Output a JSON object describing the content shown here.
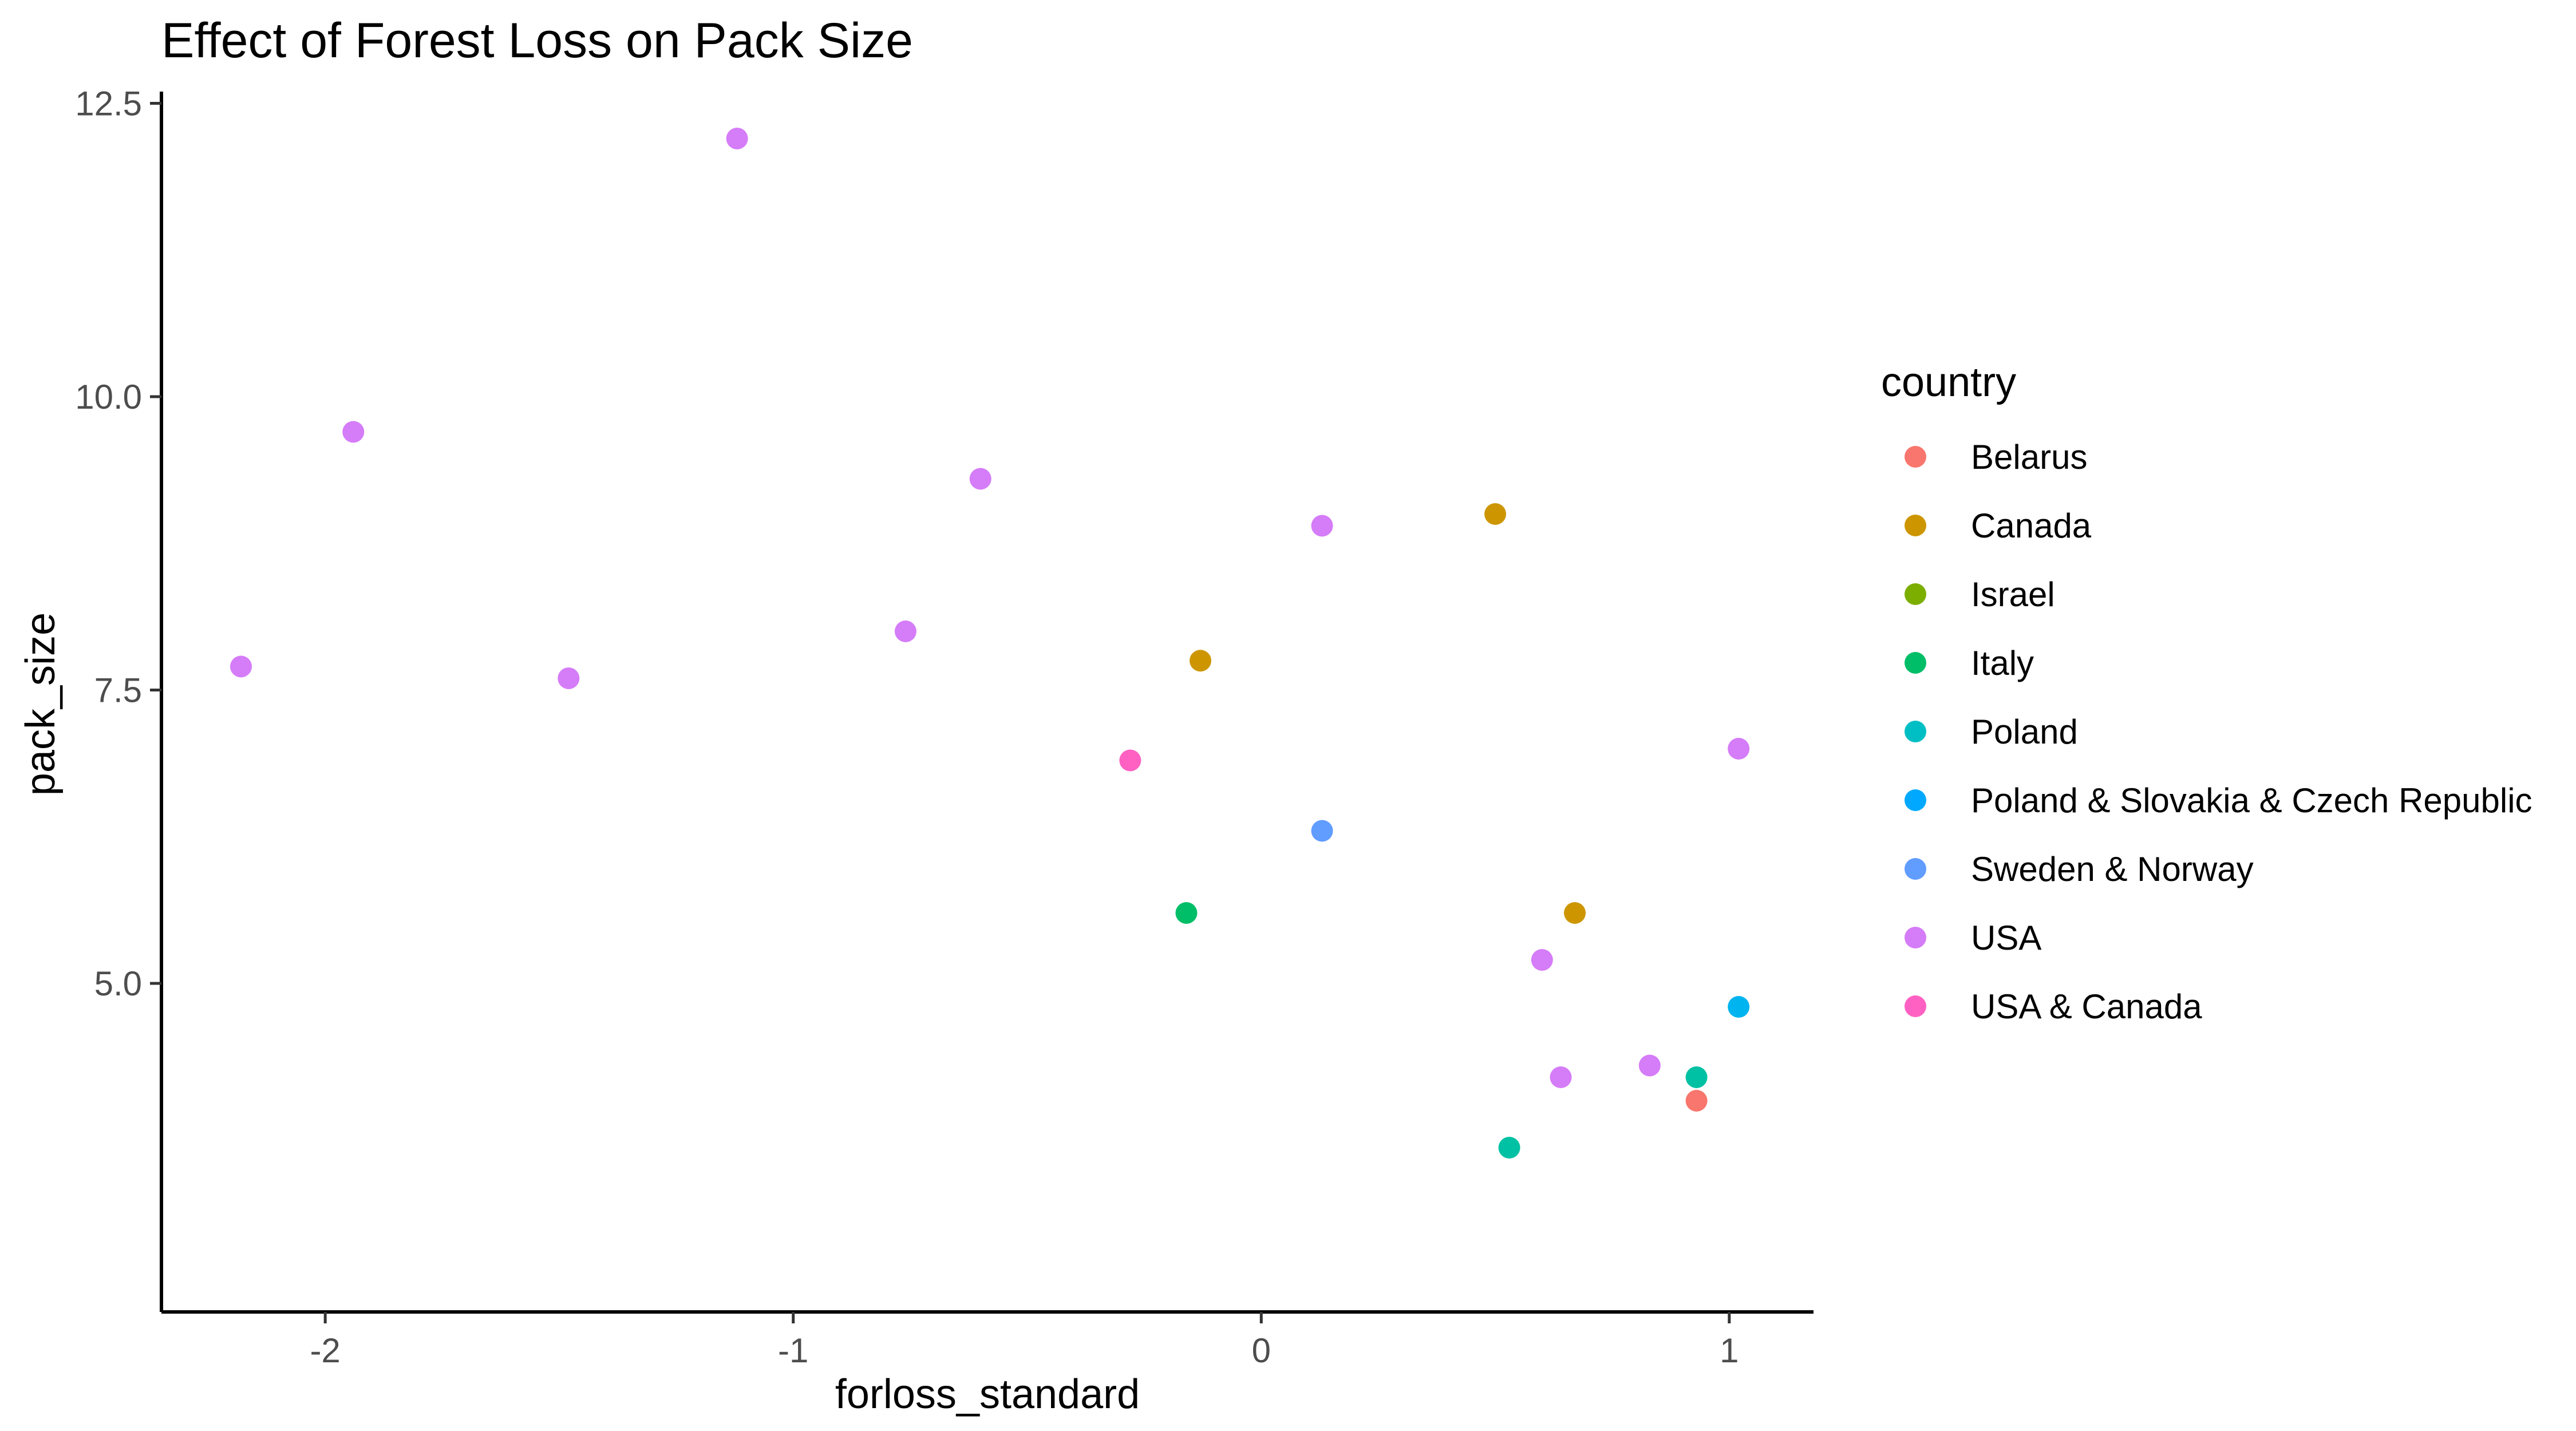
{
  "chart_data": {
    "type": "scatter",
    "title": "Effect of Forest Loss on Pack Size",
    "xlabel": "forloss_standard",
    "ylabel": "pack_size",
    "xlim": [
      -2.35,
      1.18
    ],
    "ylim": [
      2.2,
      12.6
    ],
    "xticks": [
      -2,
      -1,
      0,
      1
    ],
    "xtick_labels": [
      "-2",
      "-1",
      "0",
      "1"
    ],
    "yticks": [
      5.0,
      7.5,
      10.0,
      12.5
    ],
    "ytick_labels": [
      "5.0",
      "7.5",
      "10.0",
      "12.5"
    ],
    "grid": false,
    "legend": {
      "title": "country",
      "position": "right",
      "entries": [
        {
          "name": "Belarus",
          "color": "#F8766D"
        },
        {
          "name": "Canada",
          "color": "#CD9600"
        },
        {
          "name": "Israel",
          "color": "#7CAE00"
        },
        {
          "name": "Italy",
          "color": "#00BE67"
        },
        {
          "name": "Poland",
          "color": "#00BFC4"
        },
        {
          "name": "Poland & Slovakia & Czech Republic",
          "color": "#00A9FF"
        },
        {
          "name": "Sweden & Norway",
          "color": "#619CFF"
        },
        {
          "name": "USA",
          "color": "#D57CF8"
        },
        {
          "name": "USA & Canada",
          "color": "#FF61C3"
        }
      ]
    },
    "series": [
      {
        "name": "Belarus",
        "color": "#F8766D",
        "points": [
          {
            "x": 0.93,
            "y": 4.0
          }
        ]
      },
      {
        "name": "Canada",
        "color": "#CD9600",
        "points": [
          {
            "x": 0.5,
            "y": 9.0
          },
          {
            "x": -0.13,
            "y": 7.75
          },
          {
            "x": 0.67,
            "y": 5.6
          }
        ]
      },
      {
        "name": "Israel",
        "color": "#7CAE00",
        "points": []
      },
      {
        "name": "Italy",
        "color": "#00BE67",
        "points": [
          {
            "x": -0.16,
            "y": 5.6
          }
        ]
      },
      {
        "name": "Poland",
        "color": "#00C1A3",
        "points": [
          {
            "x": 0.93,
            "y": 4.2
          },
          {
            "x": 0.53,
            "y": 3.6
          }
        ]
      },
      {
        "name": "Poland & Slovakia & Czech Republic",
        "color": "#00B4EF",
        "points": [
          {
            "x": 1.02,
            "y": 4.8
          }
        ]
      },
      {
        "name": "Sweden & Norway",
        "color": "#619CFF",
        "points": [
          {
            "x": 0.13,
            "y": 6.3
          }
        ]
      },
      {
        "name": "USA",
        "color": "#D57CF8",
        "points": [
          {
            "x": -1.12,
            "y": 12.2
          },
          {
            "x": -1.94,
            "y": 9.7
          },
          {
            "x": -0.6,
            "y": 9.3
          },
          {
            "x": 0.13,
            "y": 8.9
          },
          {
            "x": -0.76,
            "y": 8.0
          },
          {
            "x": -2.18,
            "y": 7.7
          },
          {
            "x": -1.48,
            "y": 7.6
          },
          {
            "x": 1.02,
            "y": 7.0
          },
          {
            "x": 0.6,
            "y": 5.2
          },
          {
            "x": 0.64,
            "y": 4.2
          },
          {
            "x": 0.83,
            "y": 4.3
          }
        ]
      },
      {
        "name": "USA & Canada",
        "color": "#FF61C3",
        "points": [
          {
            "x": -0.28,
            "y": 6.9
          }
        ]
      }
    ]
  }
}
